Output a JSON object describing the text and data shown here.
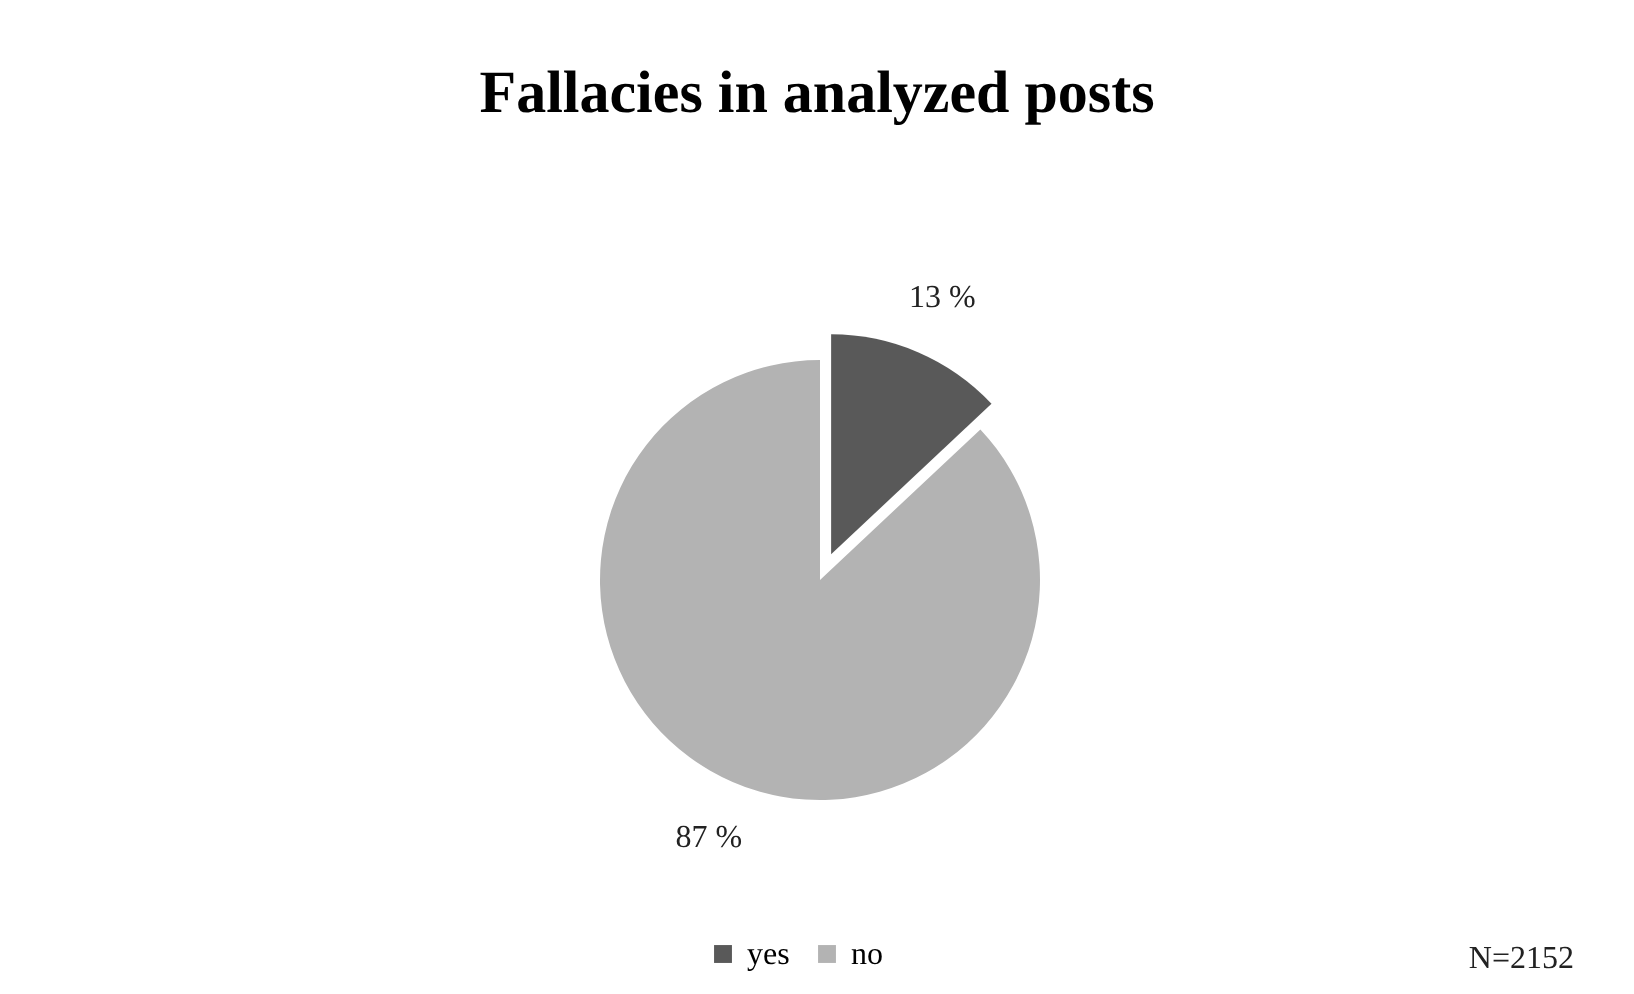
{
  "chart_data": {
    "type": "pie",
    "title": "Fallacies in analyzed posts",
    "categories": [
      "yes",
      "no"
    ],
    "values": [
      13,
      87
    ],
    "colors": [
      "#595959",
      "#b3b3b3"
    ],
    "value_labels": [
      "13 %",
      "87 %"
    ],
    "legend": "bottom",
    "annotations": [
      "N=2152"
    ]
  }
}
